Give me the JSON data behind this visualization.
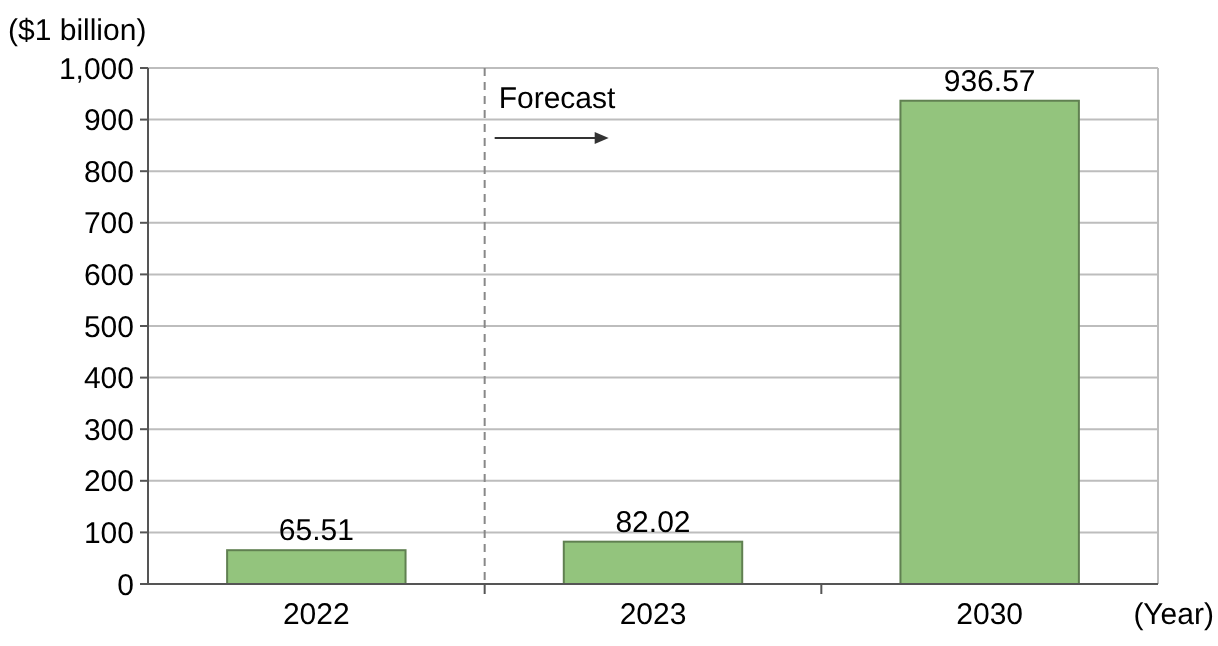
{
  "chart_data": {
    "type": "bar",
    "ylabel": "($1 billion)",
    "xlabel": "(Year)",
    "categories": [
      "2022",
      "2023",
      "2030"
    ],
    "values": [
      65.51,
      82.02,
      936.57
    ],
    "color": "#93c47d",
    "ylim": [
      0,
      1000
    ],
    "yticks": [
      0,
      100,
      200,
      300,
      400,
      500,
      600,
      700,
      800,
      900,
      {
        "value": 1000,
        "label": "1,000"
      }
    ],
    "grid": "y",
    "data_labels": true,
    "ref_lines": [
      {
        "axis": "x",
        "value": "2023",
        "label": "Forecast",
        "line_style": "dashed",
        "color": "#888888"
      }
    ]
  }
}
